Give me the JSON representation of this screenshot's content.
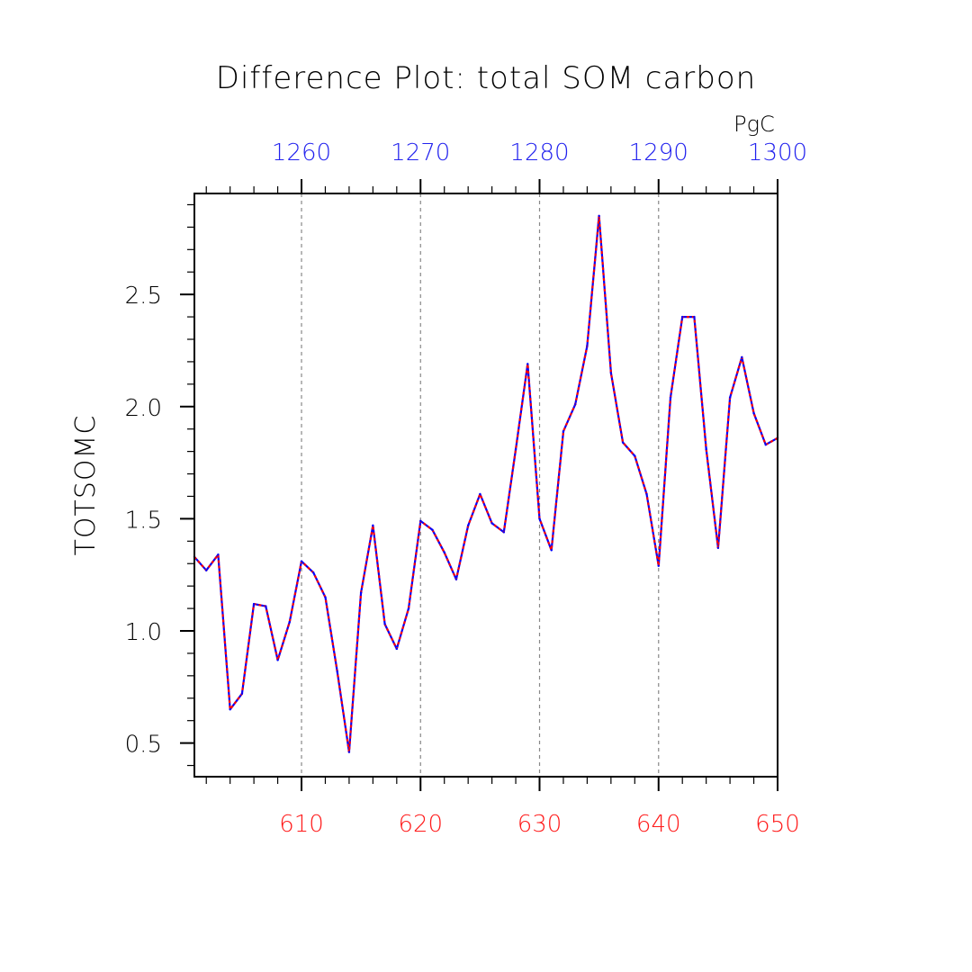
{
  "chart_data": {
    "type": "line",
    "title": "Difference Plot: total SOM carbon",
    "ylabel": "TOTSOMC",
    "xlim": [
      601,
      650
    ],
    "ylim": [
      0.35,
      2.95
    ],
    "x_ticks": [
      610,
      620,
      630,
      640,
      650
    ],
    "x_tick_labels": [
      "610",
      "620",
      "630",
      "640",
      "650"
    ],
    "top_axis": {
      "unit": "PgC",
      "ticks": [
        1260,
        1270,
        1280,
        1290,
        1300
      ],
      "tick_labels": [
        "1260",
        "1270",
        "1280",
        "1290",
        "1300"
      ],
      "range": [
        1251,
        1300
      ]
    },
    "y_ticks": [
      0.5,
      1.0,
      1.5,
      2.0,
      2.5
    ],
    "y_tick_labels": [
      "0.5",
      "1.0",
      "1.5",
      "2.0",
      "2.5"
    ],
    "grid": "dashed vertical lines at major x ticks",
    "colors": {
      "bottom_axis": "#ff1a1a",
      "top_axis": "#2222ee",
      "line_a": "#ff0000",
      "line_b": "#0000ff"
    },
    "x": [
      601,
      602,
      603,
      604,
      605,
      606,
      607,
      608,
      609,
      610,
      611,
      612,
      613,
      614,
      615,
      616,
      617,
      618,
      619,
      620,
      621,
      622,
      623,
      624,
      625,
      626,
      627,
      628,
      629,
      630,
      631,
      632,
      633,
      634,
      635,
      636,
      637,
      638,
      639,
      640,
      641,
      642,
      643,
      644,
      645,
      646,
      647,
      648,
      649,
      650
    ],
    "series": [
      {
        "values": [
          1.33,
          1.27,
          1.34,
          0.65,
          0.72,
          1.12,
          1.11,
          0.87,
          1.04,
          1.31,
          1.26,
          1.15,
          0.82,
          0.46,
          1.17,
          1.47,
          1.03,
          0.92,
          1.1,
          1.49,
          1.45,
          1.35,
          1.23,
          1.47,
          1.61,
          1.48,
          1.44,
          1.81,
          2.19,
          1.5,
          1.36,
          1.89,
          2.01,
          2.27,
          2.85,
          2.15,
          1.84,
          1.78,
          1.61,
          1.29,
          2.04,
          2.4,
          2.4,
          1.81,
          1.37,
          2.04,
          2.22,
          1.97,
          1.83,
          1.86
        ]
      }
    ]
  }
}
